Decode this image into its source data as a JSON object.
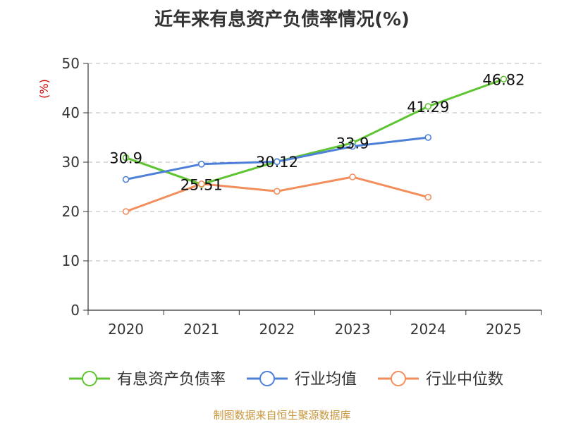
{
  "chart_data": {
    "type": "line",
    "title": "近年来有息资产负债率情况(%)",
    "ylabel": "(%)",
    "xlabel": "",
    "categories": [
      "2020",
      "2021",
      "2022",
      "2023",
      "2024",
      "2025"
    ],
    "ylim": [
      0,
      50
    ],
    "yticks": [
      0,
      10,
      20,
      30,
      40,
      50
    ],
    "grid": true,
    "legend_position": "bottom",
    "series": [
      {
        "name": "有息资产负债率",
        "color": "#5fc431",
        "values": [
          30.9,
          25.51,
          30.12,
          33.9,
          41.29,
          46.82
        ],
        "labels": [
          "30.9",
          "25.51",
          "30.12",
          "33.9",
          "41.29",
          "46.82"
        ]
      },
      {
        "name": "行业均值",
        "color": "#4e80d8",
        "values": [
          26.5,
          29.6,
          30.1,
          33.2,
          35.0,
          null
        ]
      },
      {
        "name": "行业中位数",
        "color": "#f28e5b",
        "values": [
          20.0,
          25.6,
          24.1,
          27.0,
          22.9,
          null
        ]
      }
    ],
    "source": "制图数据来自恒生聚源数据库"
  },
  "colors": {
    "axis": "#333333",
    "grid": "#bbbbbb",
    "ylabel": "#cc0000",
    "source": "#c8963c"
  }
}
